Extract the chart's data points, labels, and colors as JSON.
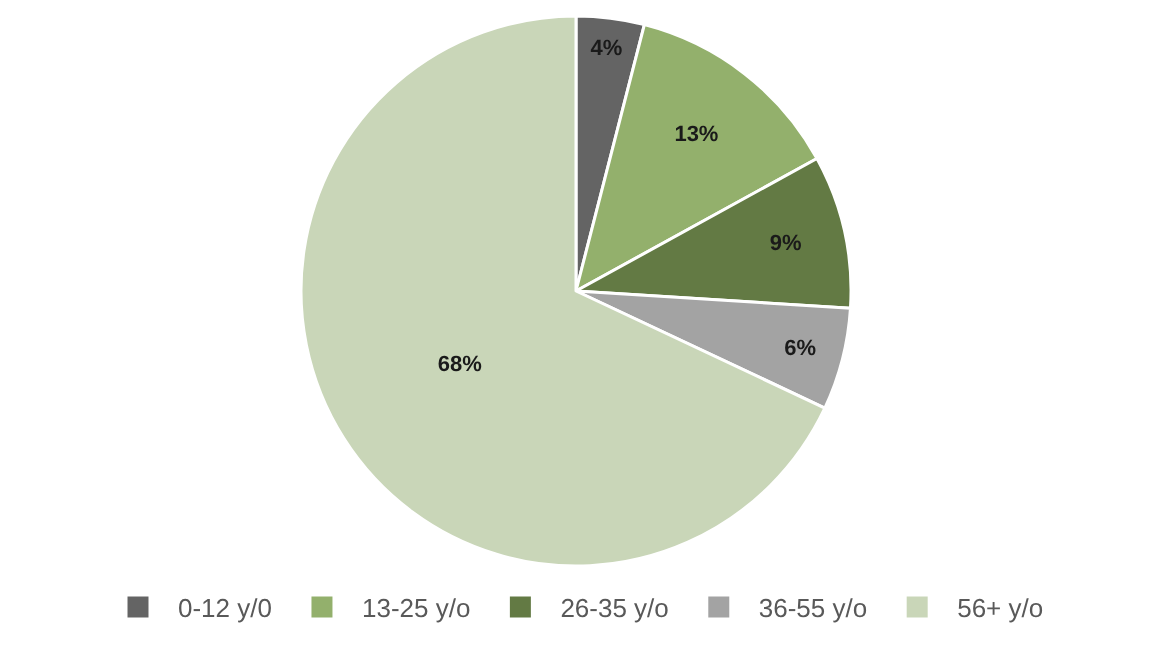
{
  "chart_data": {
    "type": "pie",
    "categories": [
      "0-12 y/0",
      "13-25 y/o",
      "26-35 y/o",
      "36-55 y/o",
      "56+ y/o"
    ],
    "values": [
      4,
      13,
      9,
      6,
      68
    ],
    "colors": [
      "#646464",
      "#93b06c",
      "#637a44",
      "#a3a3a3",
      "#c9d6b8"
    ],
    "value_labels": [
      "4%",
      "13%",
      "9%",
      "6%",
      "68%"
    ],
    "legend": "bottom"
  }
}
